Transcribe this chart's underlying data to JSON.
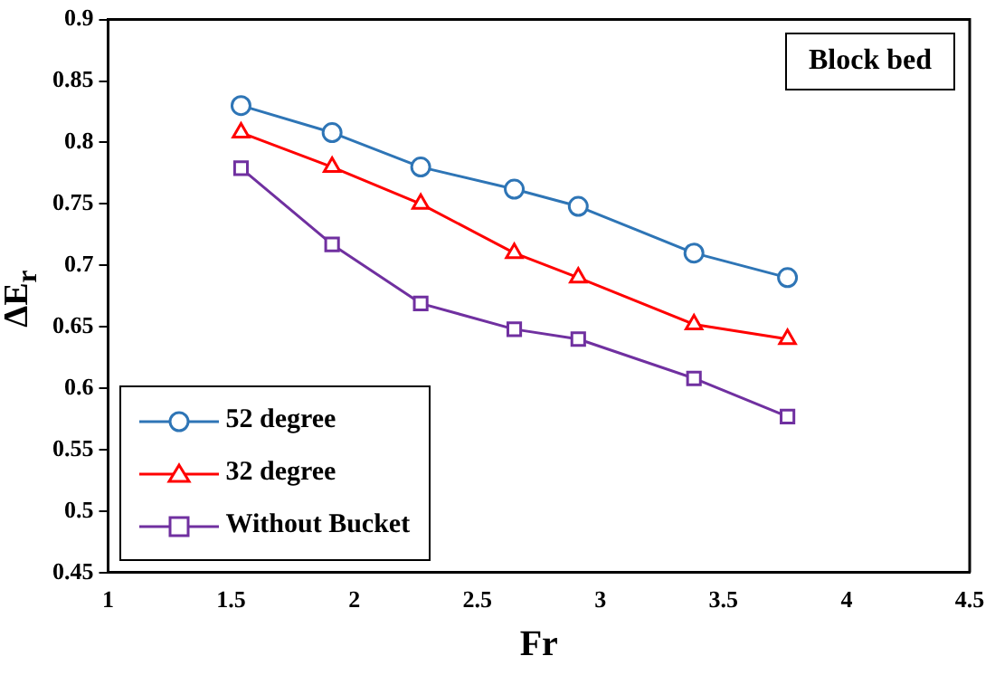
{
  "chart_data": {
    "type": "line",
    "xlabel": "Fr",
    "ylabel": "ΔE$_{r}$",
    "annotations": [
      "Block bed"
    ],
    "x": [
      1.54,
      1.91,
      2.27,
      2.65,
      2.91,
      3.38,
      3.76
    ],
    "series": [
      {
        "name": "52 degree",
        "color": "#2e75b6",
        "marker": "circle",
        "values": [
          0.83,
          0.808,
          0.78,
          0.762,
          0.748,
          0.71,
          0.69
        ]
      },
      {
        "name": "32 degree",
        "color": "#ff0000",
        "marker": "triangle",
        "values": [
          0.808,
          0.78,
          0.75,
          0.71,
          0.69,
          0.652,
          0.64
        ]
      },
      {
        "name": "Without Bucket",
        "color": "#7030a0",
        "marker": "square",
        "values": [
          0.779,
          0.717,
          0.669,
          0.648,
          0.64,
          0.608,
          0.577
        ]
      }
    ],
    "xlim": [
      1,
      4.5
    ],
    "xticks": [
      1,
      1.5,
      2,
      2.5,
      3,
      3.5,
      4,
      4.5
    ],
    "ylim": [
      0.45,
      0.9
    ],
    "yticks": [
      0.45,
      0.5,
      0.55,
      0.6,
      0.65,
      0.7,
      0.75,
      0.8,
      0.85,
      0.9
    ],
    "grid": false,
    "legend": "bottom left",
    "line_style": "solid"
  }
}
